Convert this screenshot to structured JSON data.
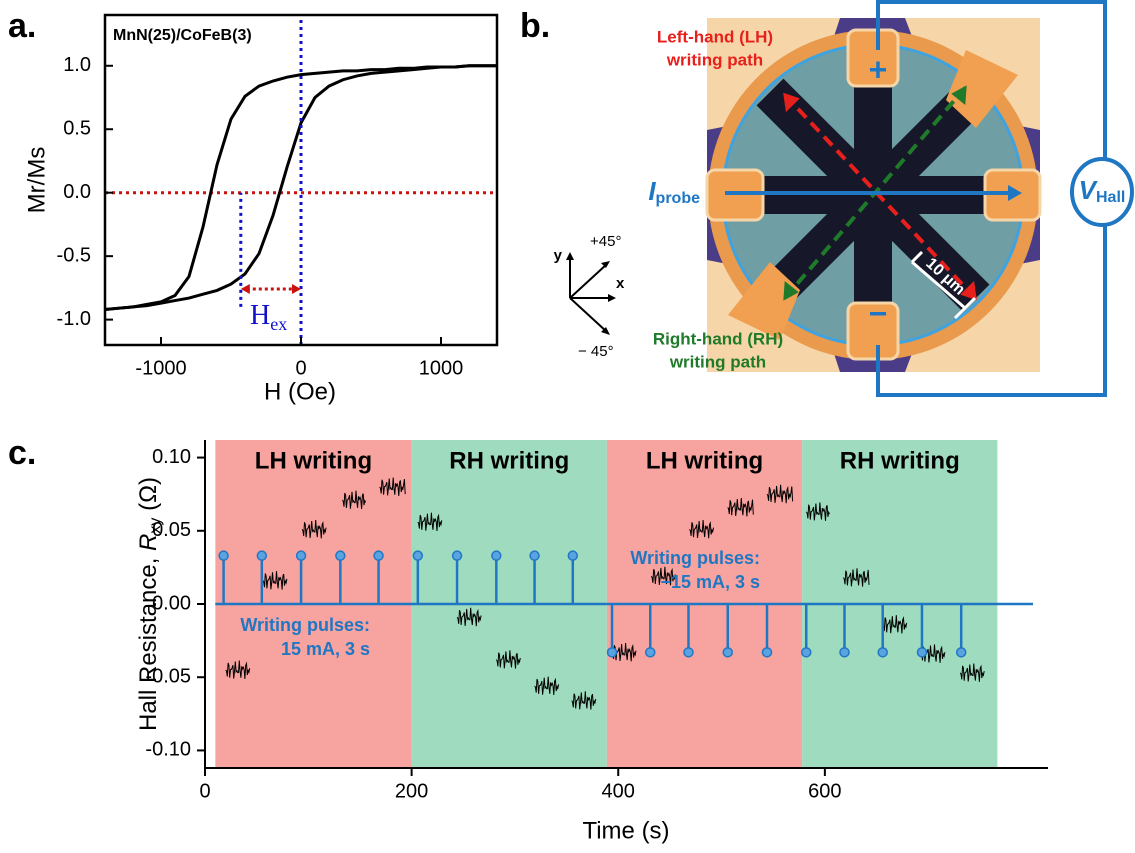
{
  "chart_data": [
    {
      "type": "line",
      "panel_label": "a.",
      "annotation": "MnN(25)/CoFeB(3)",
      "xlabel": "H (Oe)",
      "ylabel": "Mr/Ms",
      "x": [
        -1400,
        -1300,
        -1200,
        -1100,
        -1000,
        -900,
        -800,
        -700,
        -600,
        -500,
        -400,
        -300,
        -200,
        -100,
        0,
        100,
        200,
        300,
        400,
        500,
        600,
        700,
        800,
        900,
        1000,
        1100,
        1200,
        1300,
        1400
      ],
      "series": [
        {
          "color": "#000000",
          "values": [
            -0.92,
            -0.91,
            -0.9,
            -0.88,
            -0.86,
            -0.81,
            -0.66,
            -0.27,
            0.22,
            0.58,
            0.76,
            0.84,
            0.88,
            0.91,
            0.93,
            0.94,
            0.95,
            0.96,
            0.96,
            0.97,
            0.97,
            0.98,
            0.98,
            0.99,
            0.99,
            0.99,
            1.0,
            1.0,
            1.0
          ]
        },
        {
          "color": "#000000",
          "values": [
            -0.92,
            -0.91,
            -0.9,
            -0.89,
            -0.87,
            -0.85,
            -0.83,
            -0.8,
            -0.77,
            -0.72,
            -0.64,
            -0.48,
            -0.18,
            0.2,
            0.55,
            0.75,
            0.84,
            0.89,
            0.92,
            0.94,
            0.95,
            0.96,
            0.97,
            0.98,
            0.99,
            0.99,
            1.0,
            1.0,
            1.0
          ]
        }
      ],
      "xlim": [
        -1400,
        1400
      ],
      "ylim": [
        -1.2,
        1.4
      ],
      "xticks": [
        -1000,
        0,
        1000
      ],
      "yticks": [
        {
          "value": 1,
          "label": "1.0"
        },
        0.5,
        {
          "value": 0,
          "label": "0.0"
        },
        -0.5,
        {
          "value": -1,
          "label": "-1.0"
        }
      ],
      "hlines": [
        {
          "y": 0,
          "color": "#cc1111"
        }
      ],
      "vlines": [
        {
          "x": 0,
          "color": "#1111cc"
        },
        {
          "x": -430,
          "color": "#1111cc",
          "ylim": [
            -0.9,
            0
          ]
        }
      ],
      "hex": {
        "label": "H",
        "sub": "ex",
        "color": "#cc1111"
      }
    },
    {
      "type": "step",
      "panel_label": "c.",
      "xlabel": "Time (s)",
      "ylabel": {
        "text": "Hall Resistance, ",
        "var": "R",
        "sub": "xy",
        "unit": " (Ω)"
      },
      "xlim": [
        0,
        816
      ],
      "ylim": [
        -0.112,
        0.112
      ],
      "xticks": [
        0,
        200,
        400,
        600
      ],
      "yticks": [
        {
          "value": 0.1,
          "label": "0.10"
        },
        0.05,
        {
          "value": 0,
          "label": "0.00"
        },
        -0.05,
        {
          "value": -0.1,
          "label": "-0.10"
        }
      ],
      "bands": [
        {
          "start": 10,
          "end": 200,
          "label": "LH writing",
          "color": "#f7a3a0"
        },
        {
          "start": 200,
          "end": 389,
          "label": "RH writing",
          "color": "#9fdcbf"
        },
        {
          "start": 389,
          "end": 578,
          "label": "LH writing",
          "color": "#f7a3a0"
        },
        {
          "start": 578,
          "end": 767,
          "label": "RH writing",
          "color": "#9fdcbf"
        }
      ],
      "segments": {
        "color": "#000000",
        "start": [
          20,
          56,
          94,
          133,
          169,
          206,
          244,
          282,
          319,
          355,
          394,
          432,
          469,
          506,
          544,
          582,
          618,
          656,
          693,
          731
        ],
        "end": [
          44,
          80,
          118,
          156,
          194,
          230,
          268,
          306,
          343,
          379,
          418,
          456,
          493,
          531,
          569,
          605,
          643,
          680,
          717,
          755
        ],
        "values": [
          -0.045,
          0.016,
          0.051,
          0.071,
          0.08,
          0.056,
          -0.009,
          -0.038,
          -0.056,
          -0.066,
          -0.033,
          0.019,
          0.051,
          0.066,
          0.075,
          0.063,
          0.018,
          -0.014,
          -0.034,
          -0.047
        ]
      },
      "pulses": {
        "color": "#1f77c4",
        "x": [
          18,
          55,
          93,
          131,
          168,
          206,
          244,
          282,
          319,
          356,
          394,
          431,
          468,
          506,
          544,
          582,
          619,
          656,
          694,
          732
        ],
        "values": [
          0.033,
          0.033,
          0.033,
          0.033,
          0.033,
          0.033,
          0.033,
          0.033,
          0.033,
          0.033,
          -0.033,
          -0.033,
          -0.033,
          -0.033,
          -0.033,
          -0.033,
          -0.033,
          -0.033,
          -0.033,
          -0.033
        ]
      },
      "annotations": [
        [
          "Writing pulses:",
          "15 mA, 3 s"
        ],
        [
          "Writing pulses:",
          "−15 mA, 3 s"
        ]
      ]
    }
  ],
  "diagram": {
    "panel_label": "b.",
    "lh_label": [
      "Left-hand (LH)",
      "writing path"
    ],
    "rh_label": [
      "Right-hand (RH)",
      "writing path"
    ],
    "probe": {
      "text": "I",
      "sub": "probe"
    },
    "hall": {
      "text": "V",
      "sub": "Hall"
    },
    "scale": "10 μm",
    "plus": "+",
    "minus": "−",
    "axes": {
      "y": "y",
      "x": "x",
      "plus45": "+45°",
      "minus45": "− 45°"
    }
  }
}
